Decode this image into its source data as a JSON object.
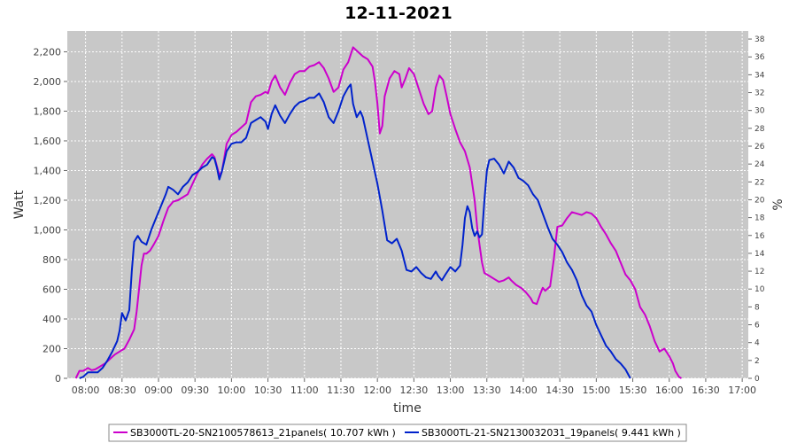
{
  "chart_data": {
    "type": "line",
    "title": "12-11-2021",
    "xlabel": "time",
    "ylabel": "Watt",
    "y2label": "%",
    "x_ticks": [
      "08:00",
      "08:30",
      "09:00",
      "09:30",
      "10:00",
      "10:30",
      "11:00",
      "11:30",
      "12:00",
      "12:30",
      "13:00",
      "13:30",
      "14:00",
      "14:30",
      "15:00",
      "15:30",
      "16:00",
      "16:30",
      "17:00"
    ],
    "xlim": [
      "07:45",
      "17:05"
    ],
    "ylim": [
      0,
      2340
    ],
    "y_ticks": [
      0,
      200,
      400,
      600,
      800,
      1000,
      1200,
      1400,
      1600,
      1800,
      2000,
      2200
    ],
    "y_tick_labels": [
      "0",
      "200",
      "400",
      "600",
      "800",
      "1,000",
      "1,200",
      "1,400",
      "1,600",
      "1,800",
      "2,000",
      "2,200"
    ],
    "y2lim": [
      0,
      38.9
    ],
    "y2_ticks": [
      0,
      2,
      4,
      6,
      8,
      10,
      12,
      14,
      16,
      18,
      20,
      22,
      24,
      26,
      28,
      30,
      32,
      34,
      36,
      38
    ],
    "grid": true,
    "legend_position": "bottom",
    "series": [
      {
        "name": "SB3000TL-20-SN2100578613_21panels( 10.707 kWh )",
        "color": "#cc00cc",
        "points": [
          [
            "07:52",
            0
          ],
          [
            "07:55",
            50
          ],
          [
            "07:58",
            50
          ],
          [
            "08:02",
            70
          ],
          [
            "08:05",
            55
          ],
          [
            "08:08",
            60
          ],
          [
            "08:12",
            80
          ],
          [
            "08:16",
            100
          ],
          [
            "08:20",
            130
          ],
          [
            "08:24",
            160
          ],
          [
            "08:28",
            180
          ],
          [
            "08:32",
            200
          ],
          [
            "08:36",
            260
          ],
          [
            "08:40",
            330
          ],
          [
            "08:42",
            450
          ],
          [
            "08:44",
            600
          ],
          [
            "08:46",
            760
          ],
          [
            "08:48",
            840
          ],
          [
            "08:50",
            840
          ],
          [
            "08:53",
            860
          ],
          [
            "08:56",
            900
          ],
          [
            "09:00",
            960
          ],
          [
            "09:04",
            1060
          ],
          [
            "09:08",
            1150
          ],
          [
            "09:12",
            1190
          ],
          [
            "09:16",
            1200
          ],
          [
            "09:20",
            1220
          ],
          [
            "09:24",
            1240
          ],
          [
            "09:28",
            1310
          ],
          [
            "09:32",
            1380
          ],
          [
            "09:36",
            1440
          ],
          [
            "09:40",
            1480
          ],
          [
            "09:44",
            1510
          ],
          [
            "09:46",
            1490
          ],
          [
            "09:48",
            1430
          ],
          [
            "09:50",
            1370
          ],
          [
            "09:52",
            1390
          ],
          [
            "09:54",
            1480
          ],
          [
            "09:56",
            1580
          ],
          [
            "10:00",
            1640
          ],
          [
            "10:04",
            1660
          ],
          [
            "10:08",
            1690
          ],
          [
            "10:12",
            1720
          ],
          [
            "10:16",
            1860
          ],
          [
            "10:20",
            1900
          ],
          [
            "10:24",
            1910
          ],
          [
            "10:28",
            1930
          ],
          [
            "10:30",
            1920
          ],
          [
            "10:33",
            2000
          ],
          [
            "10:36",
            2040
          ],
          [
            "10:40",
            1960
          ],
          [
            "10:44",
            1910
          ],
          [
            "10:48",
            1990
          ],
          [
            "10:52",
            2050
          ],
          [
            "10:56",
            2070
          ],
          [
            "11:00",
            2070
          ],
          [
            "11:04",
            2100
          ],
          [
            "11:08",
            2110
          ],
          [
            "11:12",
            2130
          ],
          [
            "11:16",
            2090
          ],
          [
            "11:20",
            2020
          ],
          [
            "11:24",
            1930
          ],
          [
            "11:28",
            1960
          ],
          [
            "11:32",
            2080
          ],
          [
            "11:36",
            2130
          ],
          [
            "11:40",
            2230
          ],
          [
            "11:44",
            2200
          ],
          [
            "11:48",
            2170
          ],
          [
            "11:52",
            2150
          ],
          [
            "11:56",
            2100
          ],
          [
            "11:58",
            2000
          ],
          [
            "12:00",
            1850
          ],
          [
            "12:02",
            1650
          ],
          [
            "12:04",
            1700
          ],
          [
            "12:06",
            1900
          ],
          [
            "12:10",
            2020
          ],
          [
            "12:14",
            2070
          ],
          [
            "12:18",
            2050
          ],
          [
            "12:20",
            1960
          ],
          [
            "12:23",
            2020
          ],
          [
            "12:26",
            2090
          ],
          [
            "12:30",
            2050
          ],
          [
            "12:34",
            1950
          ],
          [
            "12:38",
            1850
          ],
          [
            "12:42",
            1780
          ],
          [
            "12:45",
            1800
          ],
          [
            "12:48",
            1960
          ],
          [
            "12:51",
            2040
          ],
          [
            "12:54",
            2010
          ],
          [
            "12:57",
            1900
          ],
          [
            "13:00",
            1780
          ],
          [
            "13:04",
            1680
          ],
          [
            "13:08",
            1590
          ],
          [
            "13:12",
            1530
          ],
          [
            "13:16",
            1420
          ],
          [
            "13:20",
            1200
          ],
          [
            "13:22",
            1020
          ],
          [
            "13:24",
            900
          ],
          [
            "13:26",
            780
          ],
          [
            "13:28",
            710
          ],
          [
            "13:32",
            690
          ],
          [
            "13:36",
            670
          ],
          [
            "13:40",
            650
          ],
          [
            "13:44",
            660
          ],
          [
            "13:48",
            680
          ],
          [
            "13:50",
            660
          ],
          [
            "13:54",
            630
          ],
          [
            "13:58",
            610
          ],
          [
            "14:02",
            580
          ],
          [
            "14:06",
            540
          ],
          [
            "14:08",
            510
          ],
          [
            "14:11",
            500
          ],
          [
            "14:14",
            570
          ],
          [
            "14:16",
            610
          ],
          [
            "14:18",
            590
          ],
          [
            "14:22",
            620
          ],
          [
            "14:25",
            800
          ],
          [
            "14:28",
            1020
          ],
          [
            "14:32",
            1030
          ],
          [
            "14:36",
            1080
          ],
          [
            "14:40",
            1120
          ],
          [
            "14:44",
            1110
          ],
          [
            "14:48",
            1100
          ],
          [
            "14:52",
            1120
          ],
          [
            "14:56",
            1110
          ],
          [
            "15:00",
            1080
          ],
          [
            "15:04",
            1020
          ],
          [
            "15:08",
            970
          ],
          [
            "15:12",
            910
          ],
          [
            "15:16",
            860
          ],
          [
            "15:20",
            780
          ],
          [
            "15:24",
            700
          ],
          [
            "15:28",
            660
          ],
          [
            "15:32",
            600
          ],
          [
            "15:36",
            480
          ],
          [
            "15:40",
            430
          ],
          [
            "15:44",
            350
          ],
          [
            "15:48",
            250
          ],
          [
            "15:52",
            180
          ],
          [
            "15:56",
            200
          ],
          [
            "16:00",
            150
          ],
          [
            "16:03",
            100
          ],
          [
            "16:05",
            50
          ],
          [
            "16:08",
            10
          ],
          [
            "16:10",
            0
          ]
        ]
      },
      {
        "name": "SB3000TL-21-SN2130032031_19panels( 9.441 kWh )",
        "color": "#0022cc",
        "points": [
          [
            "07:55",
            0
          ],
          [
            "07:58",
            10
          ],
          [
            "08:02",
            40
          ],
          [
            "08:06",
            40
          ],
          [
            "08:10",
            40
          ],
          [
            "08:14",
            70
          ],
          [
            "08:18",
            120
          ],
          [
            "08:22",
            180
          ],
          [
            "08:26",
            250
          ],
          [
            "08:28",
            320
          ],
          [
            "08:30",
            440
          ],
          [
            "08:33",
            390
          ],
          [
            "08:36",
            460
          ],
          [
            "08:38",
            720
          ],
          [
            "08:40",
            920
          ],
          [
            "08:43",
            960
          ],
          [
            "08:46",
            920
          ],
          [
            "08:50",
            900
          ],
          [
            "08:54",
            1000
          ],
          [
            "08:58",
            1080
          ],
          [
            "09:02",
            1160
          ],
          [
            "09:06",
            1240
          ],
          [
            "09:08",
            1290
          ],
          [
            "09:12",
            1270
          ],
          [
            "09:16",
            1240
          ],
          [
            "09:20",
            1290
          ],
          [
            "09:24",
            1320
          ],
          [
            "09:28",
            1370
          ],
          [
            "09:32",
            1390
          ],
          [
            "09:36",
            1420
          ],
          [
            "09:40",
            1440
          ],
          [
            "09:44",
            1490
          ],
          [
            "09:46",
            1480
          ],
          [
            "09:48",
            1420
          ],
          [
            "09:50",
            1340
          ],
          [
            "09:52",
            1390
          ],
          [
            "09:56",
            1530
          ],
          [
            "10:00",
            1580
          ],
          [
            "10:04",
            1590
          ],
          [
            "10:08",
            1590
          ],
          [
            "10:12",
            1620
          ],
          [
            "10:16",
            1720
          ],
          [
            "10:20",
            1740
          ],
          [
            "10:24",
            1760
          ],
          [
            "10:28",
            1730
          ],
          [
            "10:30",
            1680
          ],
          [
            "10:33",
            1780
          ],
          [
            "10:36",
            1840
          ],
          [
            "10:40",
            1770
          ],
          [
            "10:44",
            1720
          ],
          [
            "10:48",
            1780
          ],
          [
            "10:52",
            1830
          ],
          [
            "10:56",
            1860
          ],
          [
            "11:00",
            1870
          ],
          [
            "11:04",
            1890
          ],
          [
            "11:08",
            1890
          ],
          [
            "11:12",
            1920
          ],
          [
            "11:16",
            1860
          ],
          [
            "11:20",
            1760
          ],
          [
            "11:24",
            1720
          ],
          [
            "11:28",
            1800
          ],
          [
            "11:32",
            1900
          ],
          [
            "11:36",
            1960
          ],
          [
            "11:38",
            1980
          ],
          [
            "11:40",
            1850
          ],
          [
            "11:43",
            1760
          ],
          [
            "11:46",
            1800
          ],
          [
            "11:48",
            1760
          ],
          [
            "11:52",
            1610
          ],
          [
            "11:56",
            1460
          ],
          [
            "12:00",
            1310
          ],
          [
            "12:04",
            1130
          ],
          [
            "12:08",
            930
          ],
          [
            "12:12",
            910
          ],
          [
            "12:16",
            940
          ],
          [
            "12:20",
            860
          ],
          [
            "12:24",
            730
          ],
          [
            "12:28",
            720
          ],
          [
            "12:32",
            750
          ],
          [
            "12:36",
            710
          ],
          [
            "12:40",
            680
          ],
          [
            "12:44",
            670
          ],
          [
            "12:48",
            720
          ],
          [
            "12:50",
            690
          ],
          [
            "12:53",
            660
          ],
          [
            "12:56",
            700
          ],
          [
            "13:00",
            750
          ],
          [
            "13:04",
            720
          ],
          [
            "13:08",
            760
          ],
          [
            "13:10",
            900
          ],
          [
            "13:12",
            1080
          ],
          [
            "13:14",
            1160
          ],
          [
            "13:16",
            1120
          ],
          [
            "13:18",
            1010
          ],
          [
            "13:20",
            960
          ],
          [
            "13:22",
            990
          ],
          [
            "13:24",
            950
          ],
          [
            "13:26",
            970
          ],
          [
            "13:28",
            1200
          ],
          [
            "13:30",
            1400
          ],
          [
            "13:32",
            1470
          ],
          [
            "13:36",
            1480
          ],
          [
            "13:40",
            1440
          ],
          [
            "13:44",
            1380
          ],
          [
            "13:48",
            1460
          ],
          [
            "13:52",
            1420
          ],
          [
            "13:56",
            1350
          ],
          [
            "14:00",
            1330
          ],
          [
            "14:04",
            1300
          ],
          [
            "14:08",
            1240
          ],
          [
            "14:12",
            1200
          ],
          [
            "14:16",
            1110
          ],
          [
            "14:20",
            1020
          ],
          [
            "14:24",
            940
          ],
          [
            "14:28",
            900
          ],
          [
            "14:32",
            850
          ],
          [
            "14:36",
            780
          ],
          [
            "14:40",
            730
          ],
          [
            "14:44",
            660
          ],
          [
            "14:48",
            560
          ],
          [
            "14:52",
            490
          ],
          [
            "14:56",
            450
          ],
          [
            "15:00",
            360
          ],
          [
            "15:04",
            290
          ],
          [
            "15:08",
            220
          ],
          [
            "15:12",
            180
          ],
          [
            "15:16",
            130
          ],
          [
            "15:20",
            100
          ],
          [
            "15:24",
            60
          ],
          [
            "15:28",
            0
          ]
        ]
      }
    ]
  }
}
